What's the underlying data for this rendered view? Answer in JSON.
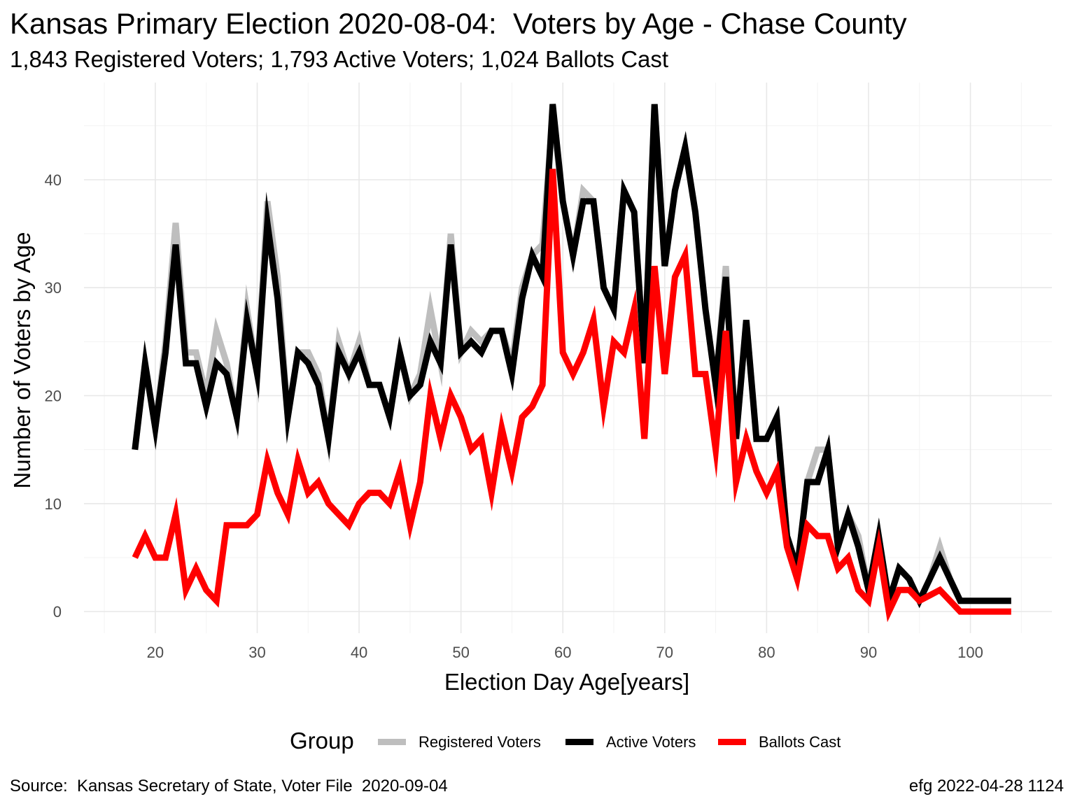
{
  "chart_data": {
    "type": "line",
    "title": "Kansas Primary Election 2020-08-04:  Voters by Age - Chase County",
    "subtitle": "1,843 Registered Voters; 1,793 Active Voters; 1,024 Ballots Cast",
    "xlabel": "Election Day Age[years]",
    "ylabel": "Number of Voters by Age",
    "xlim": [
      13,
      108
    ],
    "ylim": [
      -2,
      49
    ],
    "x_ticks": [
      20,
      30,
      40,
      50,
      60,
      70,
      80,
      90,
      100
    ],
    "y_ticks": [
      0,
      10,
      20,
      30,
      40
    ],
    "grid": true,
    "legend_title": "Group",
    "legend_position": "bottom",
    "x": [
      18,
      19,
      20,
      21,
      22,
      23,
      24,
      25,
      26,
      27,
      28,
      29,
      30,
      31,
      32,
      33,
      34,
      35,
      36,
      37,
      38,
      39,
      40,
      41,
      42,
      43,
      44,
      45,
      46,
      47,
      48,
      49,
      50,
      51,
      52,
      53,
      54,
      55,
      56,
      57,
      58,
      59,
      60,
      61,
      62,
      63,
      64,
      65,
      66,
      67,
      68,
      69,
      70,
      71,
      72,
      73,
      74,
      75,
      76,
      77,
      78,
      79,
      80,
      81,
      82,
      83,
      84,
      85,
      86,
      87,
      88,
      89,
      90,
      91,
      92,
      93,
      94,
      95,
      96,
      97,
      98,
      99,
      100,
      101,
      102,
      103,
      104
    ],
    "series": [
      {
        "name": "Registered Voters",
        "color": "#bebebe",
        "values": [
          15,
          23,
          17,
          25,
          36,
          24,
          24,
          20,
          26,
          23,
          18,
          28,
          22,
          38,
          31,
          18,
          24,
          24,
          22,
          16,
          25,
          22,
          25,
          21,
          21,
          18,
          24,
          20,
          22,
          28,
          23,
          35,
          24,
          26,
          25,
          26,
          26,
          23,
          30,
          33,
          34,
          46,
          38,
          33,
          39,
          38,
          30,
          28,
          39,
          37,
          23,
          47,
          32,
          39,
          43,
          37,
          28,
          21,
          32,
          16,
          27,
          16,
          16,
          18,
          7,
          4,
          12,
          15,
          15,
          6,
          9,
          7,
          2,
          7,
          1,
          4,
          3,
          1,
          3,
          6,
          3,
          1,
          1,
          1,
          1,
          1,
          1
        ]
      },
      {
        "name": "Active Voters",
        "color": "#000000",
        "values": [
          15,
          23,
          17,
          24,
          34,
          23,
          23,
          19,
          23,
          22,
          18,
          27,
          22,
          36,
          29,
          18,
          24,
          23,
          21,
          16,
          24,
          22,
          24,
          21,
          21,
          18,
          24,
          20,
          21,
          25,
          23,
          34,
          24,
          25,
          24,
          26,
          26,
          22,
          29,
          33,
          31,
          47,
          38,
          33,
          38,
          38,
          30,
          28,
          39,
          37,
          23,
          47,
          32,
          39,
          43,
          37,
          28,
          21,
          31,
          16,
          27,
          16,
          16,
          18,
          7,
          4,
          12,
          12,
          15,
          6,
          9,
          6,
          2,
          7,
          1,
          4,
          3,
          1,
          3,
          5,
          3,
          1,
          1,
          1,
          1,
          1,
          1
        ]
      },
      {
        "name": "Ballots Cast",
        "color": "#ff0000",
        "values": [
          5,
          7,
          5,
          5,
          9,
          2,
          4,
          2,
          1,
          8,
          8,
          8,
          9,
          14,
          11,
          9,
          14,
          11,
          12,
          10,
          9,
          8,
          10,
          11,
          11,
          10,
          13,
          8,
          12,
          20,
          16,
          20,
          18,
          15,
          16,
          11,
          17,
          13,
          18,
          19,
          21,
          41,
          24,
          22,
          24,
          27,
          19,
          25,
          24,
          28,
          16,
          32,
          22,
          31,
          33,
          22,
          22,
          15,
          26,
          12,
          16,
          13,
          11,
          13,
          6,
          3,
          8,
          7,
          7,
          4,
          5,
          2,
          1,
          6,
          0,
          2,
          2,
          1,
          1.5,
          2,
          1,
          0,
          0,
          0,
          0,
          0,
          0
        ]
      }
    ]
  },
  "caption": {
    "source": "Source:  Kansas Secretary of State, Voter File  2020-09-04",
    "stamp": "efg 2022-04-28 1124"
  }
}
